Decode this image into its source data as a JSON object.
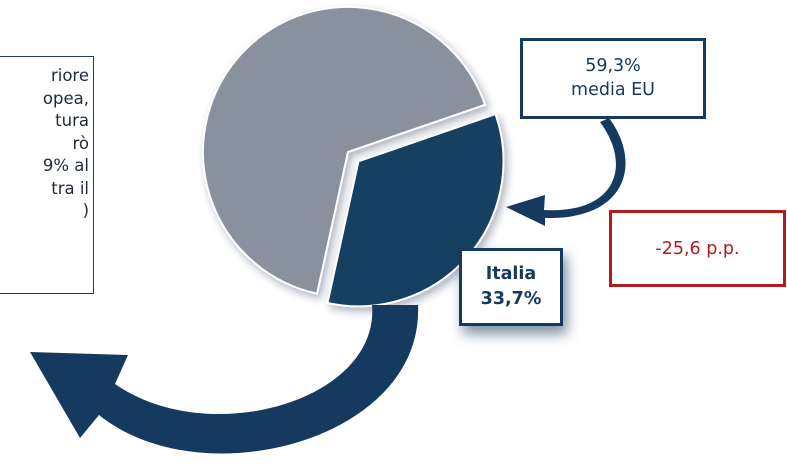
{
  "chart_data": {
    "type": "pie",
    "slices": [
      {
        "label": "Italia",
        "value": 33.7,
        "color": "#163f62"
      },
      {
        "label": "",
        "value": 66.3,
        "color": "#8a919e"
      }
    ]
  },
  "text_box": {
    "lines": [
      "riore",
      "opea,",
      "tura",
      "rò",
      "9% al",
      "tra il",
      ")"
    ]
  },
  "eu_box": {
    "line1": "59,3%",
    "line2": "media EU"
  },
  "gap_box": {
    "label": "-25,6 p.p."
  },
  "italy_box": {
    "line1": "Italia",
    "line2": "33,7%"
  },
  "colors": {
    "navy": "#163a5f",
    "grey_slice": "#8a919e",
    "italy_slice": "#163f62",
    "gap_red": "#b01c20"
  }
}
